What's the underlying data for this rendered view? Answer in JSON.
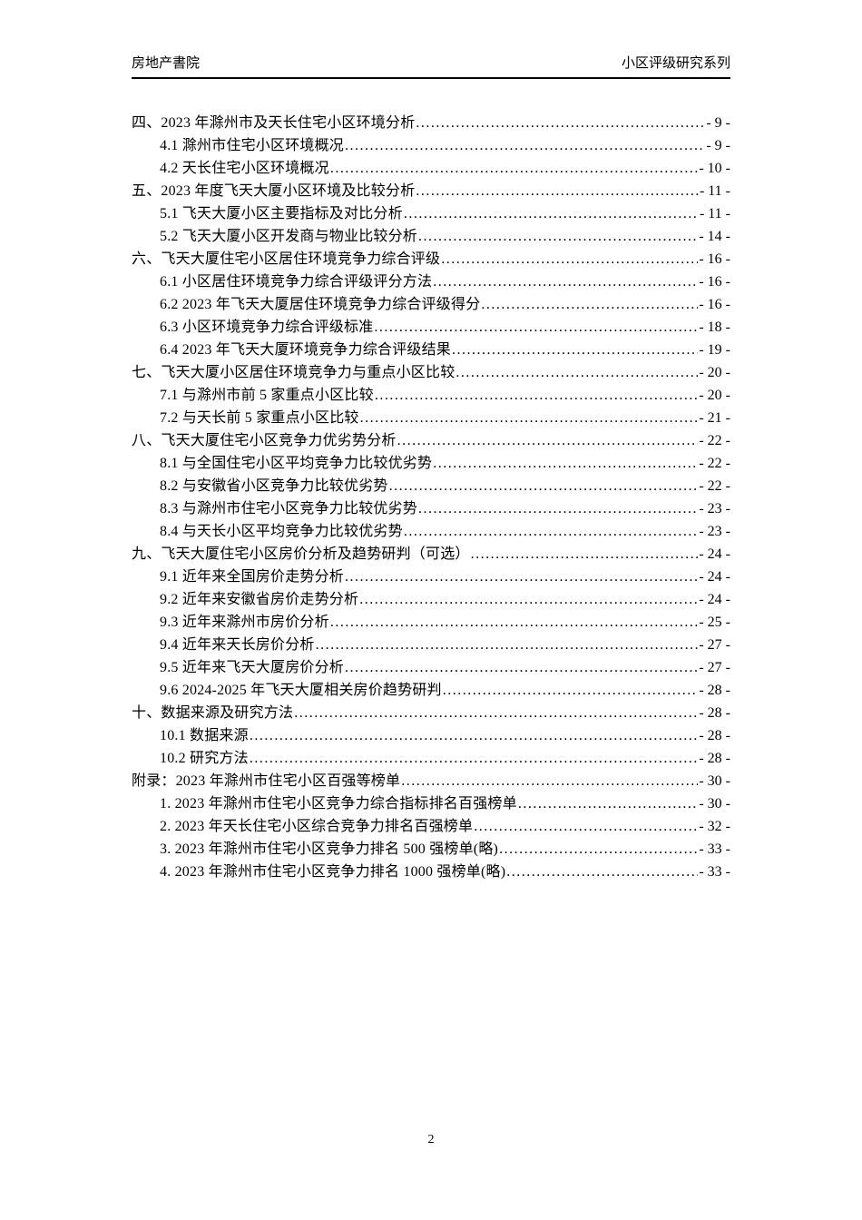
{
  "header": {
    "left": "房地产書院",
    "right": "小区评级研究系列"
  },
  "toc": {
    "entries": [
      {
        "level": 1,
        "title": "四、2023 年滁州市及天长住宅小区环境分析",
        "page": "- 9 -"
      },
      {
        "level": 2,
        "title": "4.1 滁州市住宅小区环境概况",
        "page": "- 9 -"
      },
      {
        "level": 2,
        "title": "4.2 天长住宅小区环境概况",
        "page": "- 10 -"
      },
      {
        "level": 1,
        "title": "五、2023 年度飞天大厦小区环境及比较分析",
        "page": "- 11 -"
      },
      {
        "level": 2,
        "title": "5.1 飞天大厦小区主要指标及对比分析",
        "page": "- 11 -"
      },
      {
        "level": 2,
        "title": "5.2 飞天大厦小区开发商与物业比较分析",
        "page": "- 14 -"
      },
      {
        "level": 1,
        "title": "六、飞天大厦住宅小区居住环境竞争力综合评级",
        "page": "- 16 -"
      },
      {
        "level": 2,
        "title": "6.1 小区居住环境竞争力综合评级评分方法",
        "page": "- 16 -"
      },
      {
        "level": 2,
        "title": "6.2 2023 年飞天大厦居住环境竞争力综合评级得分",
        "page": "- 16 -"
      },
      {
        "level": 2,
        "title": "6.3 小区环境竞争力综合评级标准",
        "page": "- 18 -"
      },
      {
        "level": 2,
        "title": "6.4 2023 年飞天大厦环境竞争力综合评级结果",
        "page": "- 19 -"
      },
      {
        "level": 1,
        "title": "七、飞天大厦小区居住环境竞争力与重点小区比较",
        "page": "- 20 -"
      },
      {
        "level": 2,
        "title": "7.1 与滁州市前 5 家重点小区比较",
        "page": "- 20 -"
      },
      {
        "level": 2,
        "title": "7.2 与天长前 5 家重点小区比较",
        "page": "- 21 -"
      },
      {
        "level": 1,
        "title": "八、飞天大厦住宅小区竞争力优劣势分析",
        "page": "- 22 -"
      },
      {
        "level": 2,
        "title": "8.1 与全国住宅小区平均竞争力比较优劣势",
        "page": "- 22 -"
      },
      {
        "level": 2,
        "title": "8.2 与安徽省小区竞争力比较优劣势",
        "page": "- 22 -"
      },
      {
        "level": 2,
        "title": "8.3 与滁州市住宅小区竞争力比较优劣势",
        "page": "- 23 -"
      },
      {
        "level": 2,
        "title": "8.4 与天长小区平均竞争力比较优劣势",
        "page": "- 23 -"
      },
      {
        "level": 1,
        "title": "九、飞天大厦住宅小区房价分析及趋势研判（可选）",
        "page": "- 24 -"
      },
      {
        "level": 2,
        "title": "9.1 近年来全国房价走势分析",
        "page": "- 24 -"
      },
      {
        "level": 2,
        "title": "9.2 近年来安徽省房价走势分析",
        "page": "- 24 -"
      },
      {
        "level": 2,
        "title": "9.3 近年来滁州市房价分析",
        "page": "- 25 -"
      },
      {
        "level": 2,
        "title": "9.4 近年来天长房价分析",
        "page": "- 27 -"
      },
      {
        "level": 2,
        "title": "9.5 近年来飞天大厦房价分析",
        "page": "- 27 -"
      },
      {
        "level": 2,
        "title": "9.6 2024-2025 年飞天大厦相关房价趋势研判",
        "page": "- 28 -"
      },
      {
        "level": 1,
        "title": "十、数据来源及研究方法",
        "page": "- 28 -"
      },
      {
        "level": 2,
        "title": "10.1 数据来源",
        "page": "- 28 -"
      },
      {
        "level": 2,
        "title": "10.2 研究方法",
        "page": "- 28 -"
      },
      {
        "level": 1,
        "title": "附录：2023 年滁州市住宅小区百强等榜单",
        "page": "- 30 -"
      },
      {
        "level": 2,
        "title": "1. 2023 年滁州市住宅小区竞争力综合指标排名百强榜单",
        "page": "- 30 -"
      },
      {
        "level": 2,
        "title": "2. 2023 年天长住宅小区综合竞争力排名百强榜单",
        "page": "- 32 -"
      },
      {
        "level": 2,
        "title": "3. 2023 年滁州市住宅小区竞争力排名 500 强榜单(略)",
        "page": "- 33 -"
      },
      {
        "level": 2,
        "title": "4. 2023 年滁州市住宅小区竞争力排名 1000 强榜单(略)",
        "page": "- 33 -"
      }
    ]
  },
  "footer": {
    "page_number": "2"
  }
}
